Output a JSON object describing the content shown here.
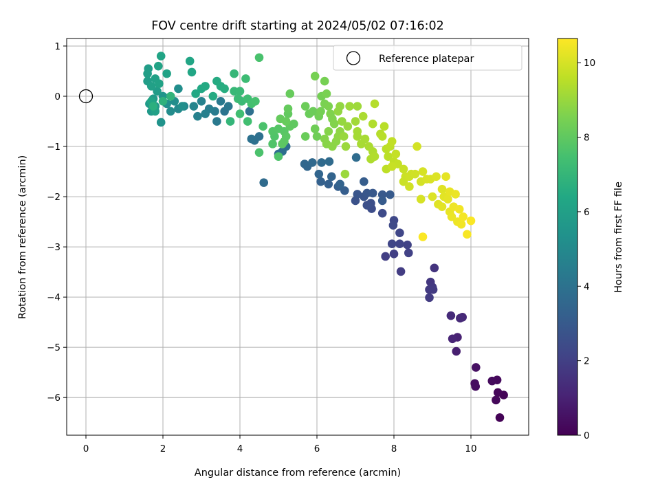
{
  "chart_data": {
    "type": "scatter",
    "title": "FOV centre drift starting at 2024/05/02 07:16:02",
    "xlabel": "Angular distance from reference (arcmin)",
    "ylabel": "Rotation from reference (arcmin)",
    "xlim": [
      -0.5,
      11.5
    ],
    "ylim": [
      -6.75,
      1.15
    ],
    "xticks": [
      0,
      2,
      4,
      6,
      8,
      10
    ],
    "yticks": [
      1,
      0,
      -1,
      -2,
      -3,
      -4,
      -5,
      -6
    ],
    "grid": true,
    "legend": {
      "label": "Reference platepar",
      "placement": "top-right"
    },
    "reference_point": {
      "x": 0,
      "y": 0
    },
    "colorbar": {
      "label": "Hours from first FF file",
      "min": 0,
      "max": 10.65,
      "ticks": [
        0,
        2,
        4,
        6,
        8,
        10
      ],
      "colormap": "viridis"
    },
    "points": [
      {
        "x": 10.75,
        "y": -6.4,
        "c": 0.05
      },
      {
        "x": 10.85,
        "y": -5.95,
        "c": 0.1
      },
      {
        "x": 10.7,
        "y": -5.9,
        "c": 0.15
      },
      {
        "x": 10.65,
        "y": -6.05,
        "c": 0.2
      },
      {
        "x": 10.68,
        "y": -5.65,
        "c": 0.25
      },
      {
        "x": 10.55,
        "y": -5.67,
        "c": 0.3
      },
      {
        "x": 10.12,
        "y": -5.78,
        "c": 0.35
      },
      {
        "x": 10.1,
        "y": -5.72,
        "c": 0.4
      },
      {
        "x": 10.13,
        "y": -5.4,
        "c": 0.45
      },
      {
        "x": 9.62,
        "y": -5.08,
        "c": 0.9
      },
      {
        "x": 9.65,
        "y": -4.8,
        "c": 1.0
      },
      {
        "x": 9.52,
        "y": -4.83,
        "c": 1.1
      },
      {
        "x": 9.78,
        "y": -4.4,
        "c": 1.2
      },
      {
        "x": 9.72,
        "y": -4.42,
        "c": 1.25
      },
      {
        "x": 9.48,
        "y": -4.37,
        "c": 1.3
      },
      {
        "x": 9.05,
        "y": -3.42,
        "c": 1.6
      },
      {
        "x": 8.95,
        "y": -3.7,
        "c": 1.7
      },
      {
        "x": 9.0,
        "y": -3.8,
        "c": 1.75
      },
      {
        "x": 8.92,
        "y": -3.85,
        "c": 1.8
      },
      {
        "x": 9.02,
        "y": -3.85,
        "c": 1.82
      },
      {
        "x": 8.92,
        "y": -4.01,
        "c": 1.85
      },
      {
        "x": 8.18,
        "y": -3.49,
        "c": 1.9
      },
      {
        "x": 7.78,
        "y": -3.19,
        "c": 1.95
      },
      {
        "x": 8.0,
        "y": -3.14,
        "c": 2.0
      },
      {
        "x": 8.38,
        "y": -3.12,
        "c": 2.05
      },
      {
        "x": 8.35,
        "y": -2.96,
        "c": 2.1
      },
      {
        "x": 8.15,
        "y": -2.94,
        "c": 2.15
      },
      {
        "x": 7.95,
        "y": -2.94,
        "c": 2.2
      },
      {
        "x": 8.15,
        "y": -2.72,
        "c": 2.25
      },
      {
        "x": 8.0,
        "y": -2.47,
        "c": 2.3
      },
      {
        "x": 7.98,
        "y": -2.57,
        "c": 2.35
      },
      {
        "x": 7.7,
        "y": -2.33,
        "c": 2.4
      },
      {
        "x": 7.42,
        "y": -2.24,
        "c": 2.5
      },
      {
        "x": 7.4,
        "y": -2.13,
        "c": 2.55
      },
      {
        "x": 7.3,
        "y": -2.17,
        "c": 2.6
      },
      {
        "x": 7.0,
        "y": -2.08,
        "c": 2.7
      },
      {
        "x": 7.22,
        "y": -2.0,
        "c": 2.75
      },
      {
        "x": 7.05,
        "y": -1.95,
        "c": 2.8
      },
      {
        "x": 7.3,
        "y": -1.93,
        "c": 2.85
      },
      {
        "x": 7.45,
        "y": -1.93,
        "c": 2.9
      },
      {
        "x": 7.7,
        "y": -1.96,
        "c": 2.95
      },
      {
        "x": 7.9,
        "y": -1.96,
        "c": 3.0
      },
      {
        "x": 7.7,
        "y": -2.08,
        "c": 3.05
      },
      {
        "x": 7.22,
        "y": -1.7,
        "c": 3.1
      },
      {
        "x": 6.72,
        "y": -1.88,
        "c": 3.15
      },
      {
        "x": 6.55,
        "y": -1.8,
        "c": 3.2
      },
      {
        "x": 6.3,
        "y": -1.75,
        "c": 3.25
      },
      {
        "x": 6.1,
        "y": -1.7,
        "c": 3.3
      },
      {
        "x": 6.6,
        "y": -1.75,
        "c": 3.35
      },
      {
        "x": 6.38,
        "y": -1.6,
        "c": 3.4
      },
      {
        "x": 6.05,
        "y": -1.55,
        "c": 3.45
      },
      {
        "x": 5.75,
        "y": -1.4,
        "c": 3.5
      },
      {
        "x": 5.68,
        "y": -1.35,
        "c": 3.55
      },
      {
        "x": 5.88,
        "y": -1.32,
        "c": 3.6
      },
      {
        "x": 6.12,
        "y": -1.32,
        "c": 3.65
      },
      {
        "x": 6.32,
        "y": -1.3,
        "c": 3.7
      },
      {
        "x": 7.02,
        "y": -1.22,
        "c": 3.75
      },
      {
        "x": 4.62,
        "y": -1.72,
        "c": 3.7
      },
      {
        "x": 5.0,
        "y": -1.15,
        "c": 3.8
      },
      {
        "x": 5.2,
        "y": -1.0,
        "c": 3.85
      },
      {
        "x": 5.1,
        "y": -1.1,
        "c": 3.85
      },
      {
        "x": 4.38,
        "y": -0.88,
        "c": 3.9
      },
      {
        "x": 4.5,
        "y": -0.8,
        "c": 3.92
      },
      {
        "x": 4.3,
        "y": -0.85,
        "c": 3.95
      },
      {
        "x": 4.25,
        "y": -0.3,
        "c": 3.9
      },
      {
        "x": 3.6,
        "y": -0.3,
        "c": 4.1
      },
      {
        "x": 3.7,
        "y": -0.2,
        "c": 4.2
      },
      {
        "x": 3.5,
        "y": -0.1,
        "c": 4.3
      },
      {
        "x": 3.4,
        "y": -0.5,
        "c": 4.3
      },
      {
        "x": 3.35,
        "y": -0.3,
        "c": 4.4
      },
      {
        "x": 3.2,
        "y": -0.25,
        "c": 4.5
      },
      {
        "x": 3.1,
        "y": -0.35,
        "c": 4.6
      },
      {
        "x": 2.9,
        "y": -0.4,
        "c": 4.65
      },
      {
        "x": 3.0,
        "y": -0.1,
        "c": 4.7
      },
      {
        "x": 2.8,
        "y": -0.2,
        "c": 4.8
      },
      {
        "x": 2.55,
        "y": -0.2,
        "c": 4.9
      },
      {
        "x": 2.4,
        "y": -0.25,
        "c": 5.0
      },
      {
        "x": 2.2,
        "y": -0.3,
        "c": 5.1
      },
      {
        "x": 2.3,
        "y": -0.1,
        "c": 5.15
      },
      {
        "x": 2.4,
        "y": 0.15,
        "c": 5.2
      },
      {
        "x": 2.5,
        "y": -0.2,
        "c": 5.25
      },
      {
        "x": 2.1,
        "y": -0.15,
        "c": 5.3
      },
      {
        "x": 1.95,
        "y": -0.52,
        "c": 5.4
      },
      {
        "x": 2.0,
        "y": 0.0,
        "c": 5.5
      },
      {
        "x": 1.8,
        "y": -0.2,
        "c": 5.6
      },
      {
        "x": 1.7,
        "y": -0.3,
        "c": 5.7
      },
      {
        "x": 1.65,
        "y": -0.15,
        "c": 5.75
      },
      {
        "x": 1.75,
        "y": -0.05,
        "c": 5.8
      },
      {
        "x": 1.85,
        "y": 0.1,
        "c": 5.85
      },
      {
        "x": 1.6,
        "y": 0.3,
        "c": 5.9
      },
      {
        "x": 1.62,
        "y": 0.55,
        "c": 5.9
      },
      {
        "x": 1.6,
        "y": 0.45,
        "c": 5.95
      },
      {
        "x": 1.7,
        "y": 0.2,
        "c": 6.0
      },
      {
        "x": 1.8,
        "y": 0.35,
        "c": 6.05
      },
      {
        "x": 1.9,
        "y": 0.25,
        "c": 6.1
      },
      {
        "x": 2.1,
        "y": 0.45,
        "c": 6.1
      },
      {
        "x": 1.88,
        "y": 0.6,
        "c": 6.15
      },
      {
        "x": 1.95,
        "y": 0.8,
        "c": 6.2
      },
      {
        "x": 2.7,
        "y": 0.7,
        "c": 6.25
      },
      {
        "x": 2.75,
        "y": 0.48,
        "c": 6.3
      },
      {
        "x": 2.85,
        "y": 0.05,
        "c": 6.35
      },
      {
        "x": 3.0,
        "y": 0.15,
        "c": 6.4
      },
      {
        "x": 3.1,
        "y": 0.2,
        "c": 6.45
      },
      {
        "x": 3.3,
        "y": 0.0,
        "c": 6.5
      },
      {
        "x": 3.4,
        "y": 0.3,
        "c": 6.5
      },
      {
        "x": 3.5,
        "y": 0.2,
        "c": 6.55
      },
      {
        "x": 3.6,
        "y": 0.15,
        "c": 6.6
      },
      {
        "x": 1.8,
        "y": -0.3,
        "c": 6.0
      },
      {
        "x": 1.7,
        "y": -0.1,
        "c": 6.2
      },
      {
        "x": 1.75,
        "y": -0.2,
        "c": 6.7
      },
      {
        "x": 2.0,
        "y": -0.1,
        "c": 6.8
      },
      {
        "x": 2.2,
        "y": 0.0,
        "c": 6.9
      },
      {
        "x": 3.75,
        "y": -0.5,
        "c": 7.0
      },
      {
        "x": 3.85,
        "y": 0.45,
        "c": 7.05
      },
      {
        "x": 3.85,
        "y": 0.1,
        "c": 7.1
      },
      {
        "x": 4.0,
        "y": 0.1,
        "c": 7.15
      },
      {
        "x": 3.95,
        "y": -0.05,
        "c": 7.2
      },
      {
        "x": 4.05,
        "y": -0.1,
        "c": 7.2
      },
      {
        "x": 4.15,
        "y": 0.35,
        "c": 7.25
      },
      {
        "x": 4.2,
        "y": -0.05,
        "c": 7.3
      },
      {
        "x": 4.0,
        "y": -0.35,
        "c": 7.35
      },
      {
        "x": 4.2,
        "y": -0.5,
        "c": 7.4
      },
      {
        "x": 4.3,
        "y": -0.15,
        "c": 7.45
      },
      {
        "x": 4.4,
        "y": -0.1,
        "c": 7.5
      },
      {
        "x": 4.5,
        "y": 0.77,
        "c": 7.55
      },
      {
        "x": 4.5,
        "y": -1.12,
        "c": 7.6
      },
      {
        "x": 4.6,
        "y": -0.6,
        "c": 7.6
      },
      {
        "x": 5.0,
        "y": -1.2,
        "c": 7.65
      },
      {
        "x": 4.85,
        "y": -0.95,
        "c": 7.7
      },
      {
        "x": 4.9,
        "y": -0.8,
        "c": 7.7
      },
      {
        "x": 4.85,
        "y": -0.7,
        "c": 7.75
      },
      {
        "x": 5.0,
        "y": -0.65,
        "c": 7.8
      },
      {
        "x": 5.15,
        "y": -0.7,
        "c": 7.85
      },
      {
        "x": 5.2,
        "y": -0.8,
        "c": 7.9
      },
      {
        "x": 5.15,
        "y": -0.9,
        "c": 7.9
      },
      {
        "x": 5.1,
        "y": -0.95,
        "c": 7.95
      },
      {
        "x": 5.3,
        "y": -0.6,
        "c": 8.0
      },
      {
        "x": 5.4,
        "y": -0.55,
        "c": 8.0
      },
      {
        "x": 5.25,
        "y": -0.35,
        "c": 8.05
      },
      {
        "x": 5.25,
        "y": -0.25,
        "c": 8.1
      },
      {
        "x": 5.05,
        "y": -0.45,
        "c": 8.1
      },
      {
        "x": 5.2,
        "y": -0.5,
        "c": 8.15
      },
      {
        "x": 5.3,
        "y": 0.05,
        "c": 8.15
      },
      {
        "x": 5.7,
        "y": -0.8,
        "c": 8.2
      },
      {
        "x": 5.8,
        "y": -0.35,
        "c": 8.2
      },
      {
        "x": 5.9,
        "y": -0.3,
        "c": 8.25
      },
      {
        "x": 5.7,
        "y": -0.2,
        "c": 8.25
      },
      {
        "x": 5.95,
        "y": -0.65,
        "c": 8.3
      },
      {
        "x": 6.0,
        "y": -0.8,
        "c": 8.3
      },
      {
        "x": 6.05,
        "y": -0.4,
        "c": 8.35
      },
      {
        "x": 6.1,
        "y": -0.3,
        "c": 8.4
      },
      {
        "x": 6.12,
        "y": 0.0,
        "c": 8.4
      },
      {
        "x": 5.95,
        "y": 0.4,
        "c": 8.45
      },
      {
        "x": 6.2,
        "y": 0.3,
        "c": 8.45
      },
      {
        "x": 6.25,
        "y": 0.05,
        "c": 8.5
      },
      {
        "x": 6.2,
        "y": -0.15,
        "c": 8.5
      },
      {
        "x": 6.3,
        "y": -0.2,
        "c": 8.55
      },
      {
        "x": 6.35,
        "y": -0.35,
        "c": 8.6
      },
      {
        "x": 6.4,
        "y": -0.45,
        "c": 8.6
      },
      {
        "x": 6.45,
        "y": -0.55,
        "c": 8.65
      },
      {
        "x": 6.3,
        "y": -0.7,
        "c": 8.7
      },
      {
        "x": 6.2,
        "y": -0.85,
        "c": 8.7
      },
      {
        "x": 6.25,
        "y": -0.95,
        "c": 8.75
      },
      {
        "x": 6.4,
        "y": -1.0,
        "c": 8.8
      },
      {
        "x": 6.5,
        "y": -0.9,
        "c": 8.8
      },
      {
        "x": 6.55,
        "y": -0.8,
        "c": 8.85
      },
      {
        "x": 6.6,
        "y": -0.7,
        "c": 8.85
      },
      {
        "x": 6.55,
        "y": -0.3,
        "c": 8.9
      },
      {
        "x": 6.6,
        "y": -0.2,
        "c": 8.9
      },
      {
        "x": 6.65,
        "y": -0.5,
        "c": 8.95
      },
      {
        "x": 6.8,
        "y": -0.6,
        "c": 9.0
      },
      {
        "x": 6.7,
        "y": -0.8,
        "c": 9.0
      },
      {
        "x": 6.75,
        "y": -1.0,
        "c": 9.05
      },
      {
        "x": 6.73,
        "y": -1.55,
        "c": 9.05
      },
      {
        "x": 6.85,
        "y": -0.2,
        "c": 9.1
      },
      {
        "x": 7.05,
        "y": -0.2,
        "c": 9.1
      },
      {
        "x": 7.0,
        "y": -0.5,
        "c": 9.15
      },
      {
        "x": 7.05,
        "y": -0.7,
        "c": 9.2
      },
      {
        "x": 7.05,
        "y": -0.8,
        "c": 9.2
      },
      {
        "x": 7.15,
        "y": -0.95,
        "c": 9.25
      },
      {
        "x": 7.25,
        "y": -0.85,
        "c": 9.25
      },
      {
        "x": 7.2,
        "y": -0.4,
        "c": 9.3
      },
      {
        "x": 7.35,
        "y": -1.0,
        "c": 9.3
      },
      {
        "x": 7.45,
        "y": -1.1,
        "c": 9.35
      },
      {
        "x": 7.4,
        "y": -1.25,
        "c": 9.35
      },
      {
        "x": 7.5,
        "y": -1.2,
        "c": 9.4
      },
      {
        "x": 7.45,
        "y": -0.55,
        "c": 9.4
      },
      {
        "x": 7.5,
        "y": -0.15,
        "c": 9.45
      },
      {
        "x": 7.65,
        "y": -0.75,
        "c": 9.45
      },
      {
        "x": 7.7,
        "y": -0.8,
        "c": 9.5
      },
      {
        "x": 7.75,
        "y": -0.6,
        "c": 9.5
      },
      {
        "x": 7.8,
        "y": -1.05,
        "c": 9.55
      },
      {
        "x": 7.85,
        "y": -1.2,
        "c": 9.55
      },
      {
        "x": 7.9,
        "y": -1.0,
        "c": 9.6
      },
      {
        "x": 7.8,
        "y": -1.45,
        "c": 9.6
      },
      {
        "x": 7.95,
        "y": -0.9,
        "c": 9.65
      },
      {
        "x": 8.0,
        "y": -1.3,
        "c": 9.65
      },
      {
        "x": 8.05,
        "y": -1.15,
        "c": 9.7
      },
      {
        "x": 8.1,
        "y": -1.35,
        "c": 9.7
      },
      {
        "x": 7.95,
        "y": -1.4,
        "c": 9.75
      },
      {
        "x": 8.25,
        "y": -1.45,
        "c": 9.75
      },
      {
        "x": 8.3,
        "y": -1.6,
        "c": 9.8
      },
      {
        "x": 8.25,
        "y": -1.7,
        "c": 9.8
      },
      {
        "x": 8.4,
        "y": -1.6,
        "c": 9.85
      },
      {
        "x": 8.45,
        "y": -1.55,
        "c": 9.85
      },
      {
        "x": 8.55,
        "y": -1.55,
        "c": 9.9
      },
      {
        "x": 8.4,
        "y": -1.8,
        "c": 9.9
      },
      {
        "x": 8.6,
        "y": -1.0,
        "c": 9.95
      },
      {
        "x": 8.7,
        "y": -1.7,
        "c": 9.95
      },
      {
        "x": 8.75,
        "y": -1.5,
        "c": 10.0
      },
      {
        "x": 8.7,
        "y": -2.05,
        "c": 10.0
      },
      {
        "x": 8.85,
        "y": -1.65,
        "c": 10.05
      },
      {
        "x": 8.95,
        "y": -1.65,
        "c": 10.05
      },
      {
        "x": 9.0,
        "y": -2.0,
        "c": 10.1
      },
      {
        "x": 9.1,
        "y": -1.6,
        "c": 10.1
      },
      {
        "x": 9.15,
        "y": -2.15,
        "c": 10.15
      },
      {
        "x": 9.25,
        "y": -1.85,
        "c": 10.15
      },
      {
        "x": 9.3,
        "y": -2.0,
        "c": 10.2
      },
      {
        "x": 9.25,
        "y": -2.2,
        "c": 10.2
      },
      {
        "x": 9.35,
        "y": -1.6,
        "c": 10.25
      },
      {
        "x": 9.4,
        "y": -2.05,
        "c": 10.25
      },
      {
        "x": 9.45,
        "y": -2.3,
        "c": 10.3
      },
      {
        "x": 9.45,
        "y": -1.9,
        "c": 10.3
      },
      {
        "x": 9.5,
        "y": -2.4,
        "c": 10.35
      },
      {
        "x": 9.6,
        "y": -1.95,
        "c": 10.35
      },
      {
        "x": 9.55,
        "y": -2.2,
        "c": 10.4
      },
      {
        "x": 9.65,
        "y": -2.5,
        "c": 10.4
      },
      {
        "x": 9.75,
        "y": -2.55,
        "c": 10.45
      },
      {
        "x": 9.7,
        "y": -2.25,
        "c": 10.45
      },
      {
        "x": 9.8,
        "y": -2.4,
        "c": 10.5
      },
      {
        "x": 9.9,
        "y": -2.75,
        "c": 10.55
      },
      {
        "x": 10.0,
        "y": -2.48,
        "c": 10.6
      },
      {
        "x": 8.75,
        "y": -2.8,
        "c": 10.6
      }
    ]
  }
}
